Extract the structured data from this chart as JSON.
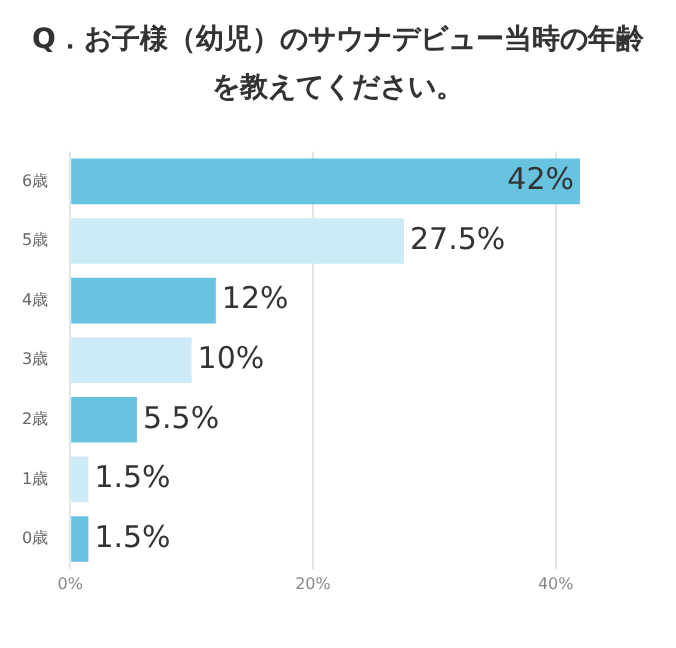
{
  "chart_data": {
    "type": "bar",
    "orientation": "horizontal",
    "title": "Q．お子様（幼児）のサウナデビュー当時の年齢を教えてください。",
    "categories": [
      "6歳",
      "5歳",
      "4歳",
      "3歳",
      "2歳",
      "1歳",
      "0歳"
    ],
    "values": [
      42,
      27.5,
      12,
      10,
      5.5,
      1.5,
      1.5
    ],
    "colors": [
      "#68c3e0",
      "#cdebf6",
      "#68c3e0",
      "#cdebf6",
      "#68c3e0",
      "#cdebf6",
      "#68c3e0"
    ],
    "value_labels": [
      "42%",
      "27.5%",
      "12%",
      "10%",
      "5.5%",
      "1.5%",
      "1.5%"
    ],
    "xlim": [
      0,
      42
    ],
    "xticks": [
      {
        "value": 0,
        "label": "0%"
      },
      {
        "value": 20,
        "label": "20%"
      },
      {
        "value": 40,
        "label": "40%"
      }
    ],
    "grid": "x",
    "legend": false
  }
}
